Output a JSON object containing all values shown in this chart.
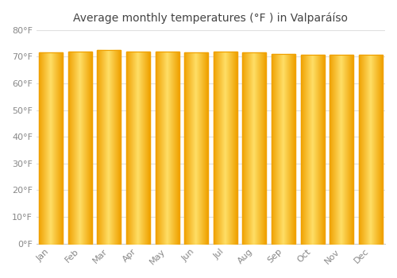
{
  "title": "Average monthly temperatures (°F ) in Valparáíso",
  "months": [
    "Jan",
    "Feb",
    "Mar",
    "Apr",
    "May",
    "Jun",
    "Jul",
    "Aug",
    "Sep",
    "Oct",
    "Nov",
    "Dec"
  ],
  "values": [
    71.6,
    72.0,
    72.5,
    72.0,
    72.0,
    71.6,
    72.0,
    71.6,
    70.9,
    70.7,
    70.7,
    70.7
  ],
  "ylim": [
    0,
    80
  ],
  "yticks": [
    0,
    10,
    20,
    30,
    40,
    50,
    60,
    70,
    80
  ],
  "bar_color_center": "#FFD966",
  "bar_color_edge": "#F0A000",
  "background_color": "#ffffff",
  "plot_bg_color": "#ffffff",
  "grid_color": "#e0e0e0",
  "title_fontsize": 10,
  "tick_fontsize": 8,
  "bar_width": 0.82
}
